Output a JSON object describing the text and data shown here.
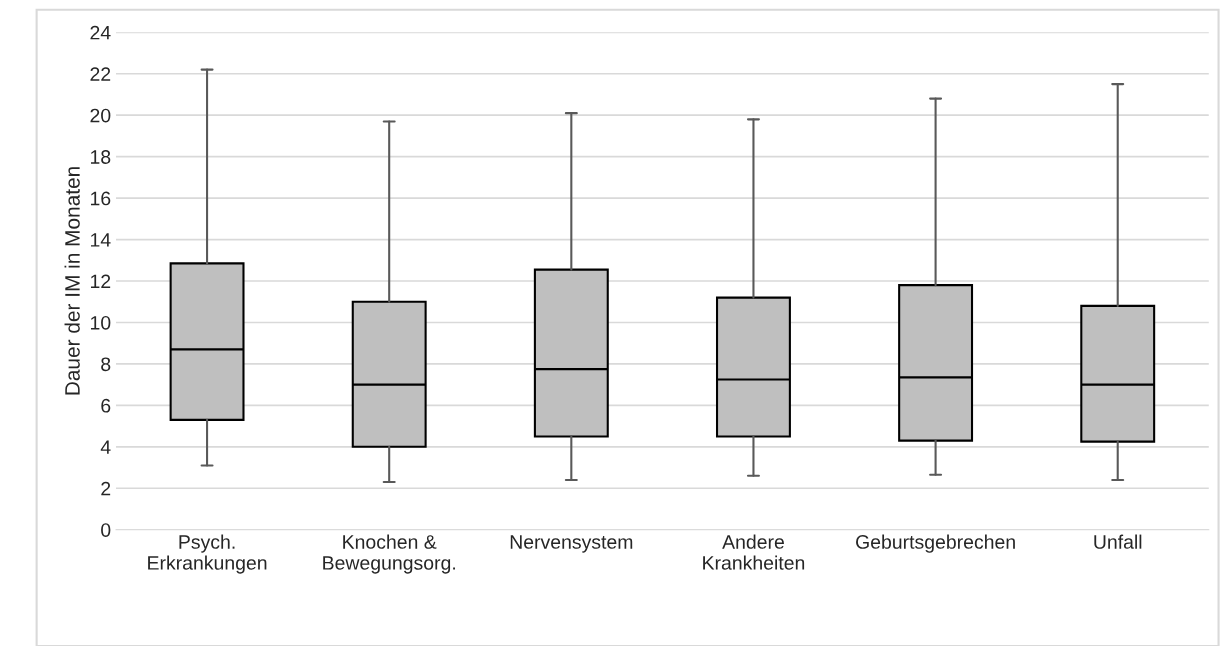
{
  "chart_data": {
    "type": "box",
    "ylabel": "Dauer der IM in Monaten",
    "categories": [
      "Psych.\nErkrankungen",
      "Knochen &\nBewegungsorg.",
      "Nervensystem",
      "Andere\nKrankheiten",
      "Geburtsgebrechen",
      "Unfall"
    ],
    "boxes": [
      {
        "low": 3.1,
        "q1": 5.3,
        "median": 8.7,
        "q3": 12.85,
        "high": 22.2
      },
      {
        "low": 2.3,
        "q1": 4.0,
        "median": 7.0,
        "q3": 11.0,
        "high": 19.7
      },
      {
        "low": 2.4,
        "q1": 4.5,
        "median": 7.75,
        "q3": 12.55,
        "high": 20.1
      },
      {
        "low": 2.6,
        "q1": 4.5,
        "median": 7.25,
        "q3": 11.2,
        "high": 19.8
      },
      {
        "low": 2.65,
        "q1": 4.3,
        "median": 7.35,
        "q3": 11.8,
        "high": 20.8
      },
      {
        "low": 2.4,
        "q1": 4.25,
        "median": 7.0,
        "q3": 10.8,
        "high": 21.5
      }
    ],
    "color": "#bfbfbf",
    "ylim": [
      0,
      24
    ],
    "yticks": [
      0,
      2,
      4,
      6,
      8,
      10,
      12,
      14,
      16,
      18,
      20,
      22,
      24
    ],
    "grid": "y",
    "legend": false
  }
}
